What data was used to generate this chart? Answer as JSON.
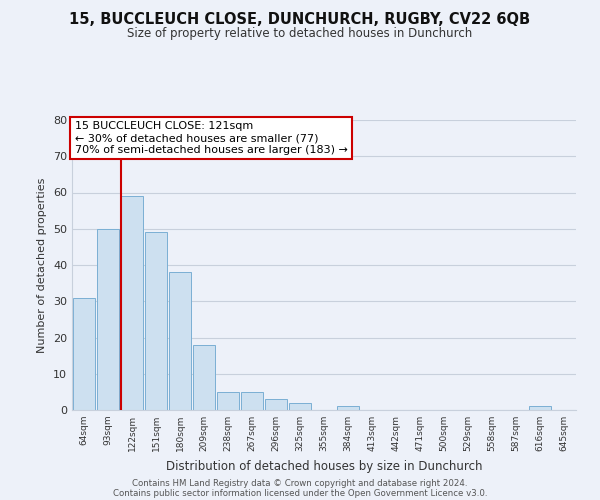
{
  "title": "15, BUCCLEUCH CLOSE, DUNCHURCH, RUGBY, CV22 6QB",
  "subtitle": "Size of property relative to detached houses in Dunchurch",
  "xlabel": "Distribution of detached houses by size in Dunchurch",
  "ylabel": "Number of detached properties",
  "bar_labels": [
    "64sqm",
    "93sqm",
    "122sqm",
    "151sqm",
    "180sqm",
    "209sqm",
    "238sqm",
    "267sqm",
    "296sqm",
    "325sqm",
    "355sqm",
    "384sqm",
    "413sqm",
    "442sqm",
    "471sqm",
    "500sqm",
    "529sqm",
    "558sqm",
    "587sqm",
    "616sqm",
    "645sqm"
  ],
  "bar_values": [
    31,
    50,
    59,
    49,
    38,
    18,
    5,
    5,
    3,
    2,
    0,
    1,
    0,
    0,
    0,
    0,
    0,
    0,
    0,
    1,
    0
  ],
  "bar_color": "#cde0f0",
  "bar_edge_color": "#7aafd4",
  "highlight_x_label": "122sqm",
  "highlight_line_color": "#cc0000",
  "annotation_title": "15 BUCCLEUCH CLOSE: 121sqm",
  "annotation_line1": "← 30% of detached houses are smaller (77)",
  "annotation_line2": "70% of semi-detached houses are larger (183) →",
  "annotation_box_edge": "#cc0000",
  "ylim": [
    0,
    80
  ],
  "yticks": [
    0,
    10,
    20,
    30,
    40,
    50,
    60,
    70,
    80
  ],
  "bg_color": "#edf1f9",
  "plot_bg_color": "#edf1f9",
  "grid_color": "#c8d0dc",
  "footer1": "Contains HM Land Registry data © Crown copyright and database right 2024.",
  "footer2": "Contains public sector information licensed under the Open Government Licence v3.0."
}
